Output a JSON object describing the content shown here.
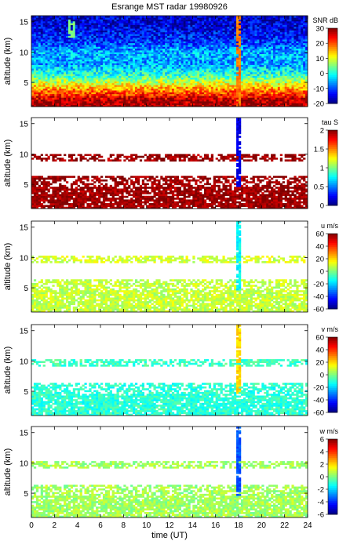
{
  "title": "Esrange MST radar 19980926",
  "xlabel": "time (UT)",
  "x_ticks": [
    0,
    2,
    4,
    6,
    8,
    10,
    12,
    14,
    16,
    18,
    20,
    22,
    24
  ],
  "chart_data": [
    {
      "type": "heatmap",
      "title": "Esrange MST radar 19980926",
      "variable": "SNR dB",
      "xlabel": "",
      "ylabel": "altitude (km)",
      "xlim": [
        0,
        24
      ],
      "ylim": [
        1,
        16
      ],
      "y_ticks": [
        5,
        10,
        15
      ],
      "colorbar_label": "SNR dB",
      "clim": [
        -20,
        30
      ],
      "colorbar_ticks": [
        30,
        20,
        10,
        0,
        -10,
        -20
      ],
      "description_profile": [
        {
          "altitude_km": 2,
          "value": 28
        },
        {
          "altitude_km": 4,
          "value": 16
        },
        {
          "altitude_km": 6,
          "value": 2
        },
        {
          "altitude_km": 8,
          "value": -6
        },
        {
          "altitude_km": 10,
          "value": -5
        },
        {
          "altitude_km": 12,
          "value": -12
        },
        {
          "altitude_km": 15,
          "value": -16
        }
      ],
      "features": [
        {
          "time_ut": 3.5,
          "altitude_range_km": [
            12.5,
            15.5
          ],
          "value": 5
        },
        {
          "time_ut": 18,
          "altitude_range_km": [
            1,
            16
          ],
          "value": 18
        }
      ]
    },
    {
      "type": "heatmap",
      "variable": "tau S",
      "xlabel": "",
      "ylabel": "altitude (km)",
      "xlim": [
        0,
        24
      ],
      "ylim": [
        1,
        16
      ],
      "y_ticks": [
        5,
        10,
        15
      ],
      "colorbar_label": "tau S",
      "clim": [
        0,
        2
      ],
      "colorbar_ticks": [
        2,
        1.5,
        1,
        0.5,
        0
      ],
      "bands": [
        {
          "altitude_range_km": [
            1,
            6.5
          ],
          "value": 1.95
        },
        {
          "altitude_range_km": [
            8.8,
            10
          ],
          "value": 1.95
        }
      ],
      "features": [
        {
          "time_ut": 18,
          "altitude_range_km": [
            4.5,
            16
          ],
          "value": 0.2
        }
      ]
    },
    {
      "type": "heatmap",
      "variable": "u m/s",
      "xlabel": "",
      "ylabel": "altitude (km)",
      "xlim": [
        0,
        24
      ],
      "ylim": [
        1,
        16
      ],
      "y_ticks": [
        5,
        10,
        15
      ],
      "colorbar_label": "u m/s",
      "clim": [
        -60,
        60
      ],
      "colorbar_ticks": [
        60,
        40,
        20,
        0,
        -20,
        -40,
        -60
      ],
      "bands": [
        {
          "altitude_range_km": [
            1,
            6.5
          ],
          "value": 8
        },
        {
          "altitude_range_km": [
            9,
            10.3
          ],
          "value": 10
        }
      ],
      "features": [
        {
          "time_ut": 18,
          "altitude_range_km": [
            4.5,
            16
          ],
          "value": -15
        }
      ]
    },
    {
      "type": "heatmap",
      "variable": "v m/s",
      "xlabel": "",
      "ylabel": "altitude (km)",
      "xlim": [
        0,
        24
      ],
      "ylim": [
        1,
        16
      ],
      "y_ticks": [
        5,
        10,
        15
      ],
      "colorbar_label": "v m/s",
      "clim": [
        -60,
        60
      ],
      "colorbar_ticks": [
        60,
        40,
        20,
        0,
        -20,
        -40,
        -60
      ],
      "bands": [
        {
          "altitude_range_km": [
            1,
            6.5
          ],
          "value": -10
        },
        {
          "altitude_range_km": [
            9,
            10.3
          ],
          "value": -8
        }
      ],
      "features": [
        {
          "time_ut": 18,
          "altitude_range_km": [
            4.5,
            16
          ],
          "value": 20
        }
      ]
    },
    {
      "type": "heatmap",
      "variable": "w m/s",
      "xlabel": "time (UT)",
      "ylabel": "altitude (km)",
      "xlim": [
        0,
        24
      ],
      "ylim": [
        1,
        16
      ],
      "y_ticks": [
        5,
        10,
        15
      ],
      "colorbar_label": "w m/s",
      "clim": [
        -6,
        6
      ],
      "colorbar_ticks": [
        6,
        4,
        2,
        0,
        -2,
        -4,
        -6
      ],
      "bands": [
        {
          "altitude_range_km": [
            1,
            6.5
          ],
          "value": 0.4
        },
        {
          "altitude_range_km": [
            9,
            10.3
          ],
          "value": 0.4
        }
      ],
      "features": [
        {
          "time_ut": 18,
          "altitude_range_km": [
            4.5,
            16
          ],
          "value": -3.5
        }
      ]
    }
  ]
}
